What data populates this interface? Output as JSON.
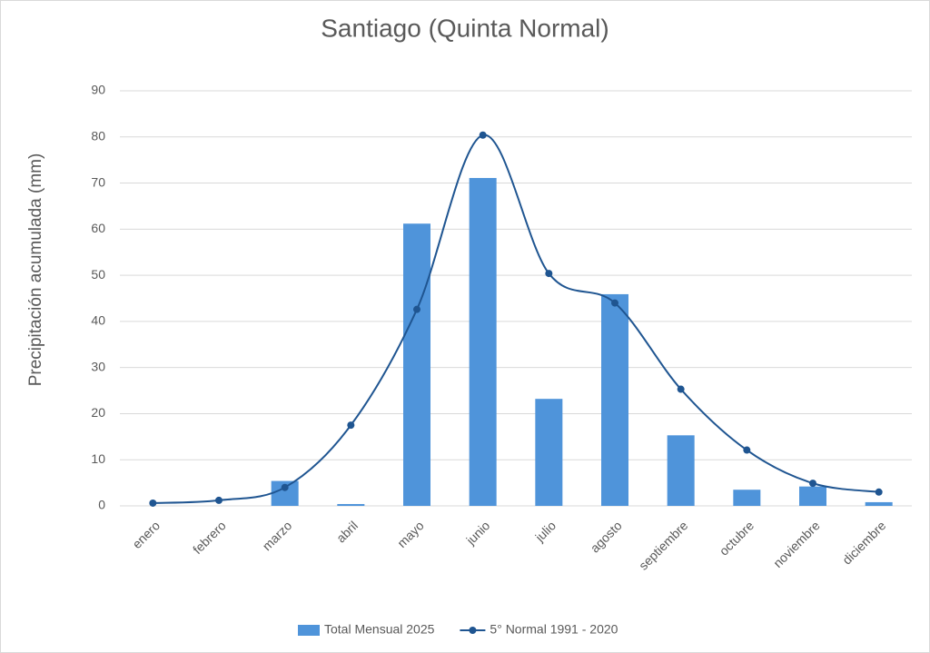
{
  "chart_data": {
    "type": "bar",
    "title": "Santiago (Quinta Normal)",
    "y_label": "Precipitación acumulada (mm)",
    "categories": [
      "enero",
      "febrero",
      "marzo",
      "abril",
      "mayo",
      "junio",
      "julio",
      "agosto",
      "septiembre",
      "octubre",
      "noviembre",
      "diciembre"
    ],
    "series": [
      {
        "name": "Total Mensual 2025",
        "type": "bar",
        "color": "#4f94da",
        "values": [
          0,
          0,
          5.4,
          0.4,
          61.2,
          71.1,
          23.2,
          45.9,
          15.3,
          3.5,
          4.2,
          0.8
        ]
      },
      {
        "name": "5° Normal 1991 - 2020",
        "type": "line",
        "color": "#1f5591",
        "values": [
          0.6,
          1.2,
          4.0,
          17.5,
          42.6,
          80.4,
          50.4,
          44.0,
          25.3,
          12.1,
          4.9,
          3.0
        ]
      }
    ],
    "ylim": [
      0,
      90
    ],
    "yticks": [
      0,
      10,
      20,
      30,
      40,
      50,
      60,
      70,
      80,
      90
    ],
    "grid": true,
    "legend": "bottom"
  }
}
